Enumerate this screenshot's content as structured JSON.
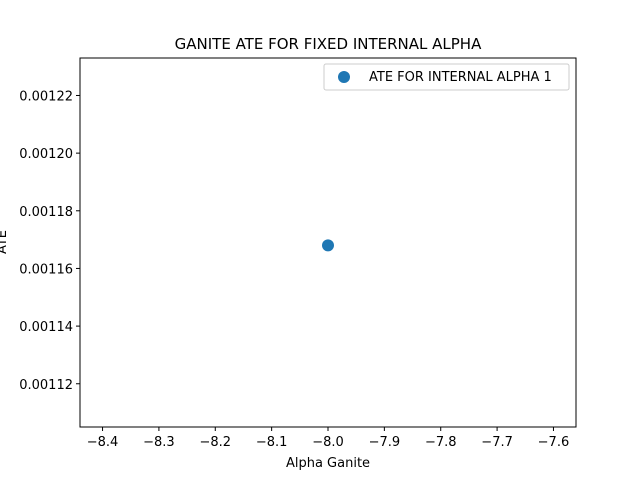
{
  "chart_data": {
    "type": "scatter",
    "title": "GANITE ATE FOR FIXED INTERNAL ALPHA",
    "xlabel": "Alpha Ganite",
    "ylabel": "ATE",
    "xlim": [
      -8.44,
      -7.56
    ],
    "ylim": [
      0.001105,
      0.001233
    ],
    "xticks": [
      -8.4,
      -8.3,
      -8.2,
      -8.1,
      -8.0,
      -7.9,
      -7.8,
      -7.7,
      -7.6
    ],
    "xtick_labels": [
      "−8.4",
      "−8.3",
      "−8.2",
      "−8.1",
      "−8.0",
      "−7.9",
      "−7.8",
      "−7.7",
      "−7.6"
    ],
    "yticks": [
      0.00112,
      0.00114,
      0.00116,
      0.00118,
      0.0012,
      0.00122
    ],
    "ytick_labels": [
      "0.00112",
      "0.00114",
      "0.00116",
      "0.00118",
      "0.00120",
      "0.00122"
    ],
    "grid": false,
    "legend_position": "top-right",
    "series": [
      {
        "name": "ATE FOR INTERNAL ALPHA 1",
        "color": "#1f77b4",
        "x": [
          -8.0
        ],
        "y": [
          0.001168
        ]
      }
    ]
  }
}
